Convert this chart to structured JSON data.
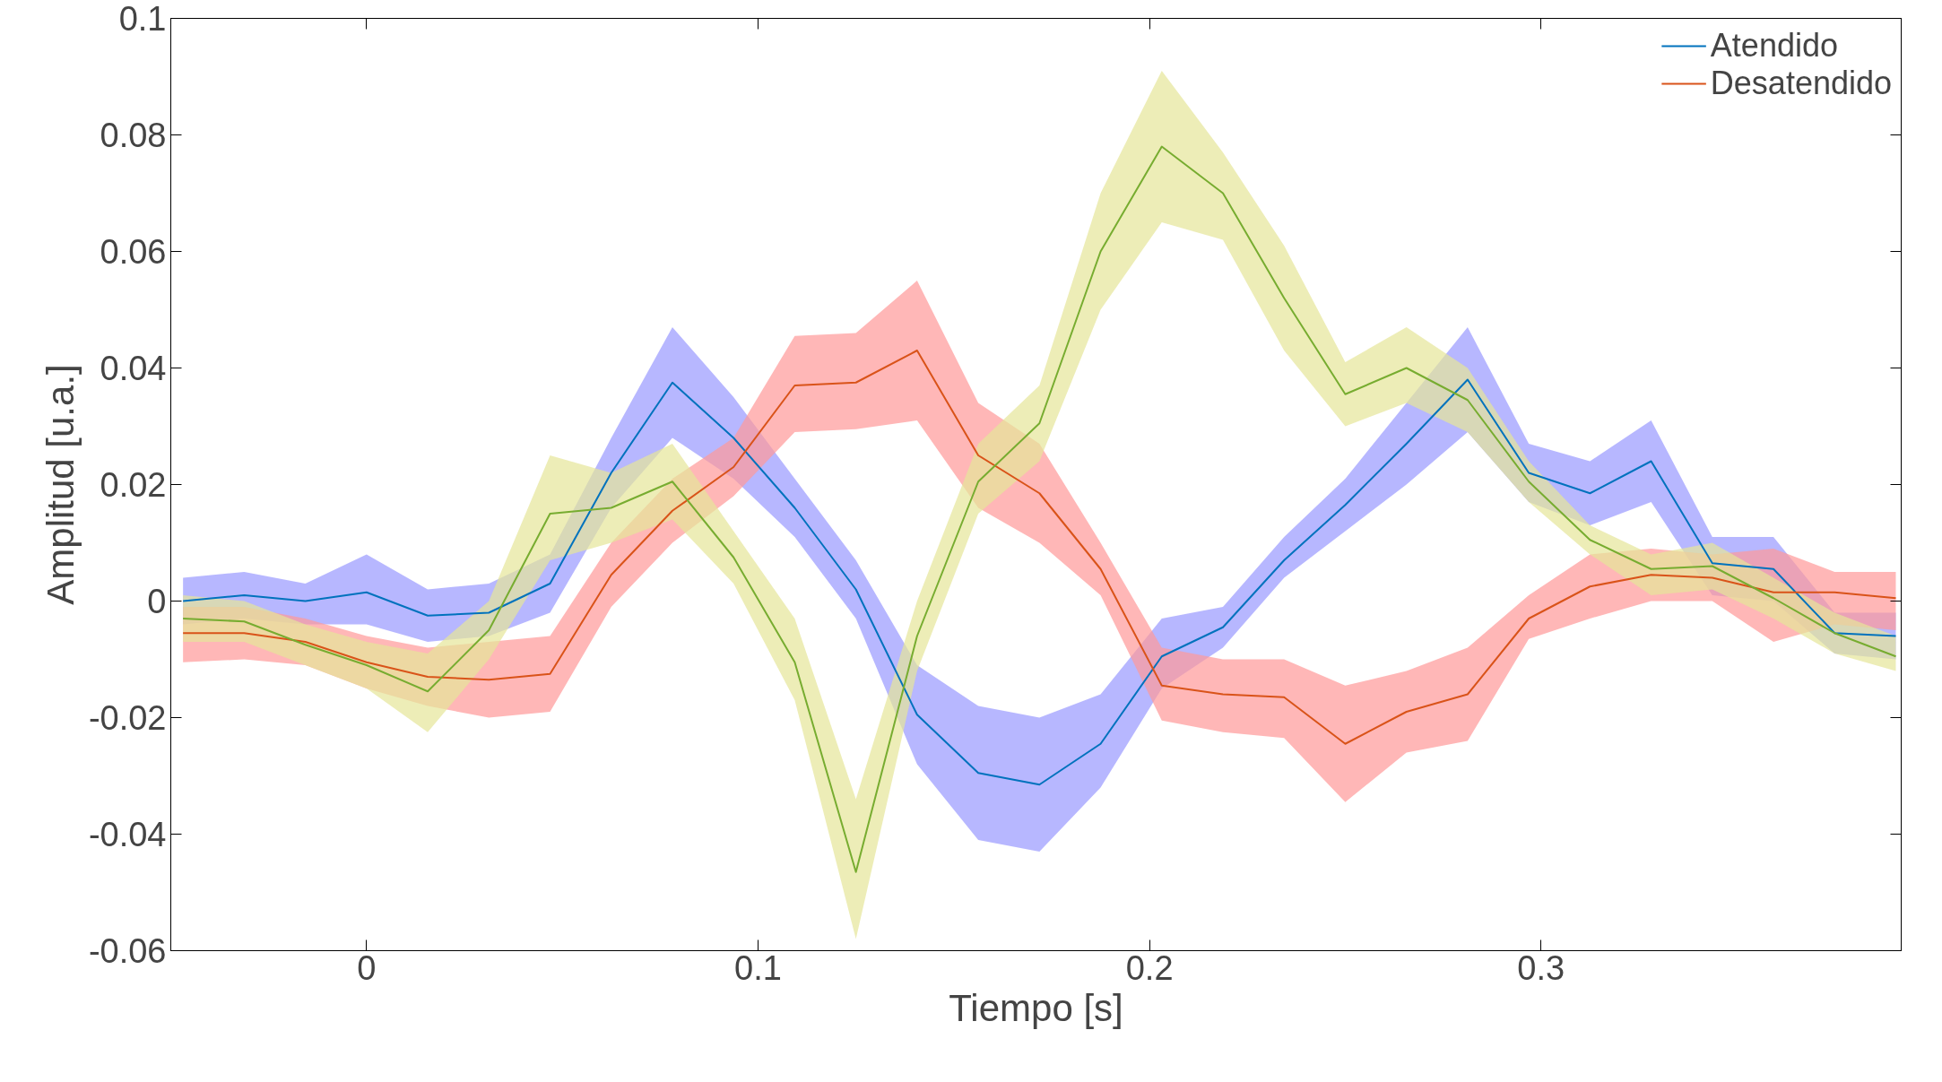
{
  "chart_data": {
    "type": "line",
    "xlabel": "Tiempo [s]",
    "ylabel": "Amplitud [u.a.]",
    "x": [
      -0.046875,
      -0.03125,
      -0.015625,
      0,
      0.015625,
      0.03125,
      0.046875,
      0.0625,
      0.078125,
      0.09375,
      0.109375,
      0.125,
      0.140625,
      0.15625,
      0.171875,
      0.1875,
      0.203125,
      0.21875,
      0.234375,
      0.25,
      0.265625,
      0.28125,
      0.296875,
      0.3125,
      0.328125,
      0.34375,
      0.359375,
      0.375,
      0.390625
    ],
    "series": [
      {
        "name": "Atendido",
        "color": "#0072bd",
        "values": [
          0.0,
          0.001,
          0.0,
          0.0015,
          -0.0025,
          -0.002,
          0.003,
          0.022,
          0.0375,
          0.028,
          0.016,
          0.002,
          -0.0195,
          -0.0295,
          -0.0315,
          -0.0245,
          -0.0095,
          -0.0045,
          0.007,
          0.0165,
          0.027,
          0.038,
          0.022,
          0.0185,
          0.024,
          0.0065,
          0.0055,
          -0.0055,
          -0.006
        ],
        "lower": [
          -0.004,
          -0.003,
          -0.004,
          -0.004,
          -0.007,
          -0.006,
          -0.002,
          0.016,
          0.028,
          0.021,
          0.011,
          -0.003,
          -0.028,
          -0.041,
          -0.043,
          -0.032,
          -0.015,
          -0.008,
          0.004,
          0.012,
          0.02,
          0.029,
          0.017,
          0.013,
          0.017,
          0.001,
          0.0,
          -0.009,
          -0.01
        ],
        "upper": [
          0.004,
          0.005,
          0.003,
          0.008,
          0.002,
          0.003,
          0.008,
          0.028,
          0.047,
          0.035,
          0.021,
          0.007,
          -0.011,
          -0.018,
          -0.02,
          -0.016,
          -0.003,
          -0.001,
          0.011,
          0.021,
          0.034,
          0.047,
          0.027,
          0.024,
          0.031,
          0.011,
          0.011,
          -0.002,
          -0.002
        ]
      },
      {
        "name": "Desatendido",
        "color": "#d95319",
        "values": [
          -0.0055,
          -0.0055,
          -0.007,
          -0.0105,
          -0.013,
          -0.0135,
          -0.0125,
          0.0045,
          0.0155,
          0.023,
          0.037,
          0.0375,
          0.043,
          0.025,
          0.0185,
          0.0055,
          -0.0145,
          -0.016,
          -0.0165,
          -0.0245,
          -0.019,
          -0.016,
          -0.003,
          0.0025,
          0.0045,
          0.004,
          0.0015,
          0.0015,
          0.0005
        ],
        "lower": [
          -0.0105,
          -0.01,
          -0.011,
          -0.015,
          -0.018,
          -0.02,
          -0.019,
          -0.001,
          0.01,
          0.018,
          0.029,
          0.0295,
          0.031,
          0.016,
          0.01,
          0.001,
          -0.0205,
          -0.0225,
          -0.0235,
          -0.0345,
          -0.026,
          -0.024,
          -0.0065,
          -0.003,
          0.0,
          0.0,
          -0.007,
          -0.004,
          -0.005
        ],
        "upper": [
          -0.001,
          -0.001,
          -0.003,
          -0.006,
          -0.008,
          -0.007,
          -0.006,
          0.01,
          0.021,
          0.028,
          0.0455,
          0.046,
          0.055,
          0.034,
          0.027,
          0.01,
          -0.008,
          -0.01,
          -0.01,
          -0.0145,
          -0.012,
          -0.008,
          0.001,
          0.008,
          0.009,
          0.008,
          0.009,
          0.005,
          0.005
        ]
      },
      {
        "color": "#77ac30",
        "values": [
          -0.003,
          -0.0035,
          -0.0075,
          -0.011,
          -0.0155,
          -0.005,
          0.015,
          0.016,
          0.0205,
          0.0075,
          -0.0105,
          -0.0465,
          -0.006,
          0.0205,
          0.0305,
          0.06,
          0.078,
          0.07,
          0.052,
          0.0355,
          0.04,
          0.0345,
          0.0205,
          0.0105,
          0.0055,
          0.006,
          0.0005,
          -0.0055,
          -0.0095
        ],
        "lower": [
          -0.007,
          -0.007,
          -0.011,
          -0.015,
          -0.0225,
          -0.01,
          0.007,
          0.01,
          0.014,
          0.003,
          -0.017,
          -0.058,
          -0.012,
          0.015,
          0.024,
          0.05,
          0.065,
          0.062,
          0.043,
          0.03,
          0.034,
          0.029,
          0.017,
          0.008,
          0.001,
          0.002,
          -0.003,
          -0.009,
          -0.012
        ],
        "upper": [
          0.001,
          0.0,
          -0.004,
          -0.007,
          -0.009,
          0.0,
          0.025,
          0.022,
          0.027,
          0.012,
          -0.003,
          -0.034,
          0.0,
          0.027,
          0.037,
          0.07,
          0.091,
          0.077,
          0.061,
          0.041,
          0.047,
          0.04,
          0.024,
          0.013,
          0.008,
          0.01,
          0.004,
          -0.002,
          -0.006
        ]
      }
    ],
    "xlim": [
      -0.05,
      0.392
    ],
    "ylim": [
      -0.06,
      0.1
    ],
    "xticks": [
      0,
      0.1,
      0.2,
      0.3
    ],
    "yticks": [
      -0.06,
      -0.04,
      -0.02,
      0,
      0.02,
      0.04,
      0.06,
      0.08,
      0.1
    ],
    "grid": false,
    "legend": "top right",
    "marker": "none",
    "line_style": "solid"
  }
}
